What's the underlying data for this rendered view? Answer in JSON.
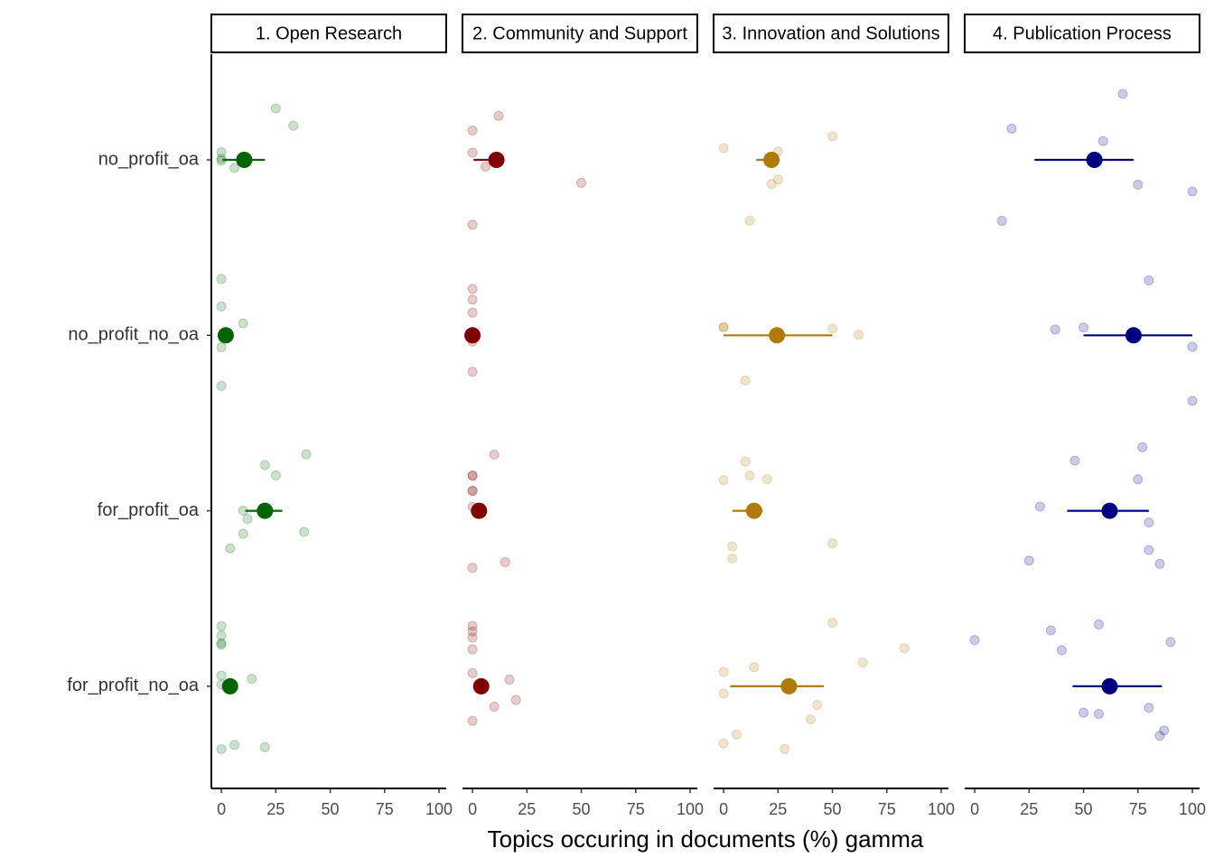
{
  "chart_data": {
    "type": "faceted-dot",
    "xlabel": "Topics occuring in documents (%) gamma",
    "categories": [
      "no_profit_oa",
      "no_profit_no_oa",
      "for_profit_oa",
      "for_profit_no_oa"
    ],
    "xlim": [
      -4.6,
      103.3
    ],
    "xticks": [
      0,
      25,
      50,
      75,
      100
    ],
    "facets": [
      {
        "title": "1. Open Research",
        "color": "#006400",
        "means": [
          10.5,
          2,
          20,
          4
        ],
        "lower": [
          0.5,
          0.5,
          11,
          1
        ],
        "upper": [
          20,
          3.5,
          28,
          7
        ],
        "points": [
          [
            0,
            6,
            25,
            33,
            0,
            0
          ],
          [
            0,
            0,
            0,
            10,
            0
          ],
          [
            4,
            38,
            39,
            10,
            25,
            10,
            20,
            12
          ],
          [
            0,
            0,
            0,
            6,
            0,
            0,
            14,
            20,
            0,
            0
          ]
        ]
      },
      {
        "title": "2. Community and Support",
        "color": "#800000",
        "means": [
          11,
          0,
          3,
          4
        ],
        "lower": [
          0.5,
          0,
          1,
          2
        ],
        "upper": [
          12,
          0,
          5,
          6
        ],
        "points": [
          [
            6,
            50,
            0,
            12,
            0,
            0
          ],
          [
            0,
            0,
            0,
            0,
            0
          ],
          [
            0,
            0,
            10,
            0,
            0,
            15,
            0,
            0
          ],
          [
            20,
            0,
            0,
            10,
            0,
            0,
            17,
            0,
            0
          ]
        ]
      },
      {
        "title": "3. Innovation and Solutions",
        "color": "#b07a0a",
        "means": [
          22,
          24.5,
          14,
          30
        ],
        "lower": [
          15,
          0,
          4,
          3
        ],
        "upper": [
          25,
          50,
          18,
          46
        ],
        "points": [
          [
            0,
            22,
            25,
            12,
            50,
            25
          ],
          [
            62,
            0,
            10,
            50,
            0
          ],
          [
            20,
            12,
            50,
            10,
            0,
            4,
            4
          ],
          [
            28,
            0,
            6,
            40,
            43,
            0,
            50,
            64,
            14,
            83,
            0
          ]
        ]
      },
      {
        "title": "4. Publication Process",
        "color": "#000080",
        "means": [
          55,
          73,
          62,
          62
        ],
        "lower": [
          27.5,
          50,
          42.5,
          45
        ],
        "upper": [
          73,
          100,
          80,
          86
        ],
        "points": [
          [
            75,
            100,
            17,
            12.5,
            68,
            59
          ],
          [
            100,
            50,
            80,
            100,
            37
          ],
          [
            25,
            80,
            30,
            46,
            80,
            85,
            75,
            77
          ],
          [
            0,
            57,
            50,
            80,
            85,
            40,
            87,
            90,
            57,
            35
          ]
        ]
      }
    ]
  }
}
